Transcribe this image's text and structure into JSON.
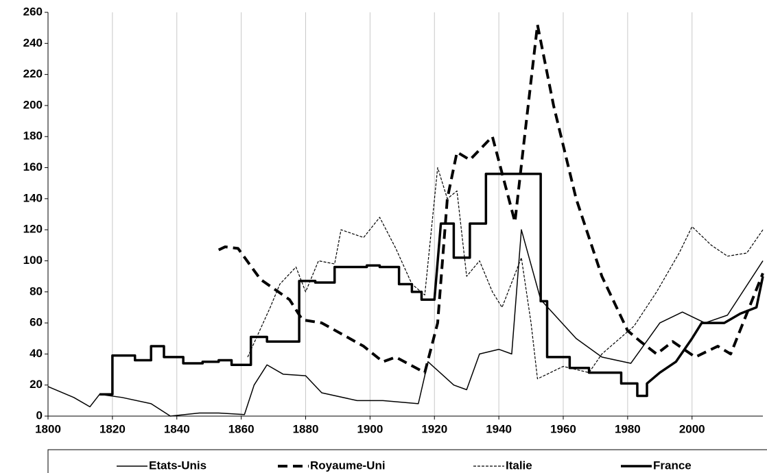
{
  "chart_data": {
    "type": "line",
    "xlim": [
      1800,
      2022
    ],
    "xticks": [
      1800,
      1820,
      1840,
      1860,
      1880,
      1900,
      1920,
      1940,
      1960,
      1980,
      2000
    ],
    "ylim": [
      0,
      260
    ],
    "yticks": [
      0,
      20,
      40,
      60,
      80,
      100,
      120,
      140,
      160,
      180,
      200,
      220,
      240,
      260
    ],
    "grid": "x",
    "legend": "bottom",
    "series": [
      {
        "name": "Etats-Unis",
        "color": "#000000",
        "line_width": 1.5,
        "dash": "none",
        "x": [
          1800,
          1808,
          1813,
          1816,
          1823,
          1832,
          1838,
          1847,
          1853,
          1861,
          1864,
          1868,
          1873,
          1880,
          1885,
          1896,
          1904,
          1915,
          1918,
          1926,
          1930,
          1934,
          1940,
          1944,
          1947,
          1953,
          1964,
          1972,
          1981,
          1990,
          1997,
          2004,
          2011,
          2022
        ],
        "values": [
          19,
          12,
          6,
          14,
          12,
          8,
          0,
          2,
          2,
          1,
          20,
          33,
          27,
          26,
          15,
          10,
          10,
          8,
          35,
          20,
          17,
          40,
          43,
          40,
          120,
          75,
          50,
          38,
          34,
          60,
          67,
          60,
          65,
          100
        ]
      },
      {
        "name": "Royaume-Uni",
        "color": "#000000",
        "line_width": 4,
        "dash": "14,8",
        "x": [
          1853,
          1855,
          1859,
          1866,
          1875,
          1879,
          1885,
          1898,
          1904,
          1908,
          1917,
          1921,
          1924,
          1927,
          1931,
          1938,
          1945,
          1948,
          1952,
          1957,
          1964,
          1972,
          1980,
          1984,
          1989,
          1994,
          2001,
          2008,
          2012,
          2022
        ],
        "values": [
          107,
          109,
          108,
          88,
          75,
          62,
          60,
          45,
          35,
          38,
          28,
          60,
          140,
          170,
          165,
          180,
          125,
          180,
          252,
          200,
          140,
          90,
          55,
          48,
          40,
          48,
          38,
          45,
          40,
          92
        ]
      },
      {
        "name": "Italie",
        "color": "#000000",
        "line_width": 1.2,
        "dash": "4,2",
        "x": [
          1862,
          1869,
          1872,
          1877,
          1880,
          1884,
          1889,
          1891,
          1898,
          1903,
          1908,
          1913,
          1917,
          1921,
          1924,
          1927,
          1930,
          1934,
          1938,
          1941,
          1947,
          1950,
          1952,
          1960,
          1968,
          1972,
          1982,
          1989,
          1996,
          2000,
          2006,
          2011,
          2017,
          2022
        ],
        "values": [
          38,
          70,
          85,
          96,
          80,
          100,
          98,
          120,
          115,
          128,
          108,
          85,
          78,
          160,
          140,
          145,
          90,
          100,
          80,
          70,
          102,
          60,
          24,
          32,
          28,
          40,
          58,
          80,
          105,
          122,
          110,
          103,
          105,
          120
        ]
      },
      {
        "name": "France",
        "color": "#000000",
        "line_width": 3.5,
        "dash": "none",
        "x": [
          1816,
          1820,
          1820,
          1827,
          1827,
          1832,
          1832,
          1836,
          1836,
          1842,
          1842,
          1848,
          1848,
          1853,
          1853,
          1857,
          1857,
          1863,
          1863,
          1868,
          1868,
          1878,
          1878,
          1883,
          1883,
          1889,
          1889,
          1899,
          1899,
          1903,
          1903,
          1909,
          1909,
          1913,
          1913,
          1916,
          1916,
          1920,
          1922,
          1926,
          1926,
          1931,
          1931,
          1936,
          1936,
          1941,
          1941,
          1953,
          1953,
          1955,
          1955,
          1962,
          1962,
          1968,
          1968,
          1978,
          1978,
          1983,
          1983,
          1986,
          1986,
          1990,
          1995,
          2000,
          2003,
          2010,
          2015,
          2020,
          2022
        ],
        "values": [
          14,
          14,
          39,
          39,
          36,
          36,
          45,
          45,
          38,
          38,
          34,
          34,
          35,
          35,
          36,
          36,
          33,
          33,
          51,
          51,
          48,
          48,
          87,
          87,
          86,
          86,
          96,
          96,
          97,
          97,
          96,
          96,
          85,
          85,
          80,
          80,
          75,
          75,
          124,
          124,
          102,
          102,
          124,
          124,
          156,
          156,
          156,
          156,
          74,
          74,
          38,
          38,
          31,
          31,
          28,
          28,
          21,
          21,
          13,
          13,
          21,
          28,
          35,
          50,
          60,
          60,
          66,
          70,
          90
        ]
      }
    ]
  }
}
